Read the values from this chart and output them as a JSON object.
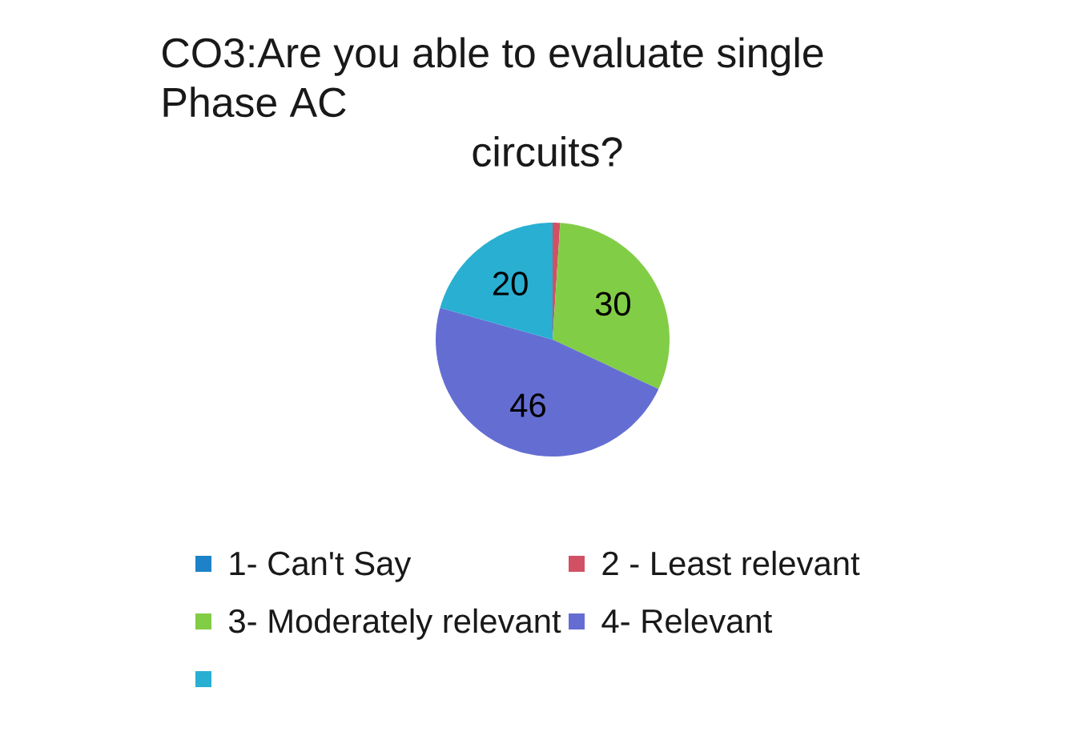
{
  "chart_data": {
    "type": "pie",
    "title": "CO3:Are you able to evaluate single Phase AC circuits?",
    "categories": [
      "1- Can't Say",
      "2 - Least relevant",
      "3- Moderately relevant",
      "4- Relevant",
      null
    ],
    "values": [
      0,
      1,
      30,
      46,
      20
    ],
    "colors": [
      "#1e82c8",
      "#d25064",
      "#82cd46",
      "#646ed2",
      "#28afd2"
    ],
    "value_labels": [
      null,
      null,
      "30",
      "46",
      "20"
    ],
    "legend": "bottom"
  }
}
